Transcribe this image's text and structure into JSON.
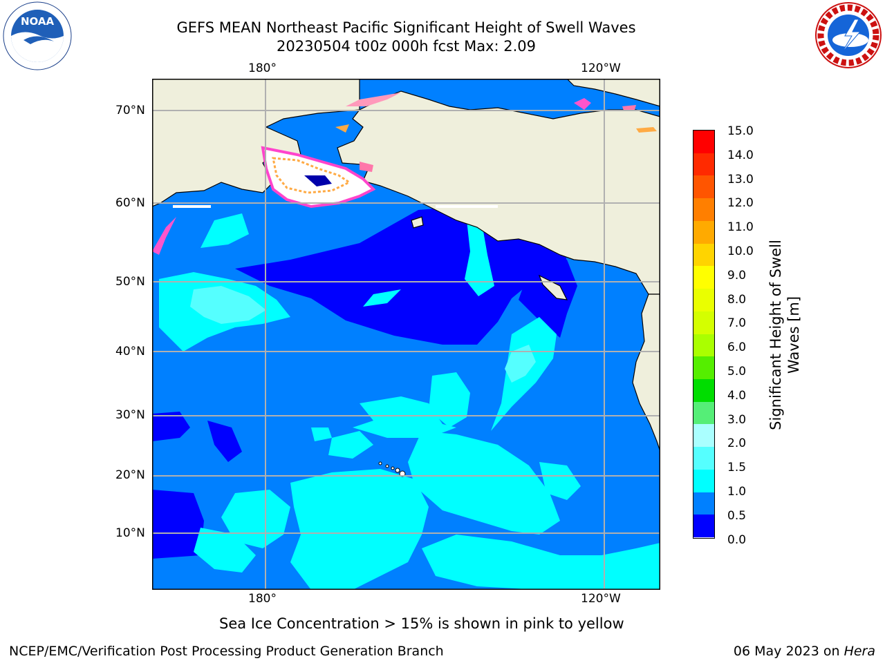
{
  "header": {
    "title_line1": "GEFS MEAN Northeast Pacific Significant Height of Swell Waves",
    "title_line2": "20230504 t00z 000h fcst   Max: 2.09"
  },
  "logos": {
    "left": {
      "icon": "noaa-logo-icon",
      "text": "NOAA"
    },
    "right": {
      "icon": "nws-logo-icon",
      "ring_text": "NATIONAL WEATHER SERVICE"
    }
  },
  "map": {
    "top_lon_labels": [
      "180°",
      "120°W"
    ],
    "bottom_lon_labels": [
      "180°",
      "120°W"
    ],
    "lat_labels": [
      "70°N",
      "60°N",
      "50°N",
      "40°N",
      "30°N",
      "20°N",
      "10°N"
    ],
    "colors": {
      "land": "#efefdc",
      "coast": "#000000",
      "grid": "#b0b0b0"
    }
  },
  "colorbar": {
    "label": "Significant Height of Swell Waves [m]",
    "ticks": [
      "15.0",
      "14.0",
      "13.0",
      "12.0",
      "11.0",
      "10.0",
      "9.0",
      "8.0",
      "7.0",
      "6.0",
      "5.0",
      "4.0",
      "3.0",
      "2.0",
      "1.5",
      "1.0",
      "0.5",
      "0.0"
    ],
    "colors_top_to_bottom": [
      "#ff0000",
      "#ff2a00",
      "#ff5500",
      "#ff7f00",
      "#ffaa00",
      "#ffd400",
      "#ffff00",
      "#eaff00",
      "#d4ff00",
      "#aaff00",
      "#55ee00",
      "#00dd00",
      "#55ee77",
      "#aaffff",
      "#55ffff",
      "#00ffff",
      "#0080ff",
      "#0000ff"
    ]
  },
  "footer": {
    "ice_note": "Sea Ice Concentration > 15% is shown in pink to yellow",
    "credit": "NCEP/EMC/Verification Post Processing Product Generation Branch",
    "date": "06 May 2023 on ",
    "machine": "Hera"
  }
}
